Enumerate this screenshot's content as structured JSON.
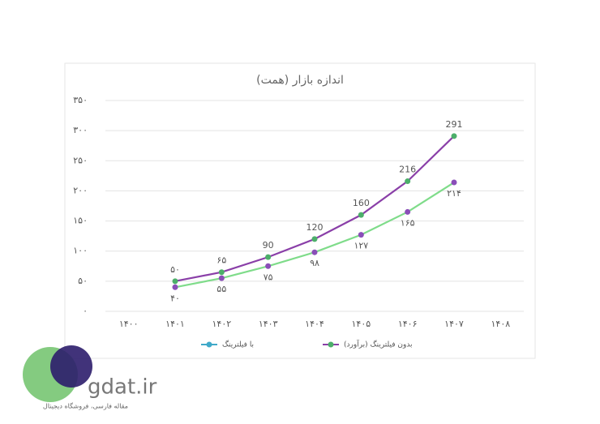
{
  "chart_data": {
    "type": "line",
    "title": "اندازه بازار (همت)",
    "categories": [
      "۱۴۰۰",
      "۱۴۰۱",
      "۱۴۰۲",
      "۱۴۰۳",
      "۱۴۰۴",
      "۱۴۰۵",
      "۱۴۰۶",
      "۱۴۰۷",
      "۱۴۰۸"
    ],
    "series": [
      {
        "name": "با فیلترینگ",
        "color": "#7fdc8a",
        "marker_color": "#8a4fb8",
        "label_side": "below",
        "values": [
          null,
          40,
          55,
          75,
          98,
          127,
          165,
          214,
          null
        ],
        "value_labels": [
          null,
          "۴۰",
          "۵۵",
          "۷۵",
          "۹۸",
          "۱۲۷",
          "۱۶۵",
          "۲۱۴",
          null
        ]
      },
      {
        "name": "بدون فیلترینگ (برآورد)",
        "color": "#8a3fa8",
        "marker_color": "#4caf6a",
        "label_side": "above",
        "values": [
          null,
          50,
          65,
          90,
          120,
          160,
          216,
          291,
          null
        ],
        "value_labels": [
          null,
          "۵۰",
          "۶۵",
          "90",
          "120",
          "160",
          "216",
          "291",
          null
        ]
      }
    ],
    "ylim": [
      0,
      350
    ],
    "yticks": [
      {
        "value": 0,
        "label": "۰"
      },
      {
        "value": 50,
        "label": "۵۰"
      },
      {
        "value": 100,
        "label": "۱۰۰"
      },
      {
        "value": 150,
        "label": "۱۵۰"
      },
      {
        "value": 200,
        "label": "۲۰۰"
      },
      {
        "value": 250,
        "label": "۲۵۰"
      },
      {
        "value": 300,
        "label": "۳۰۰"
      },
      {
        "value": 350,
        "label": "۳۵۰"
      }
    ],
    "grid": true,
    "legend": "bottom"
  },
  "watermark": {
    "site": "gdat.ir",
    "tagline": "مقاله فارسی، فروشگاه دیجیتال"
  }
}
